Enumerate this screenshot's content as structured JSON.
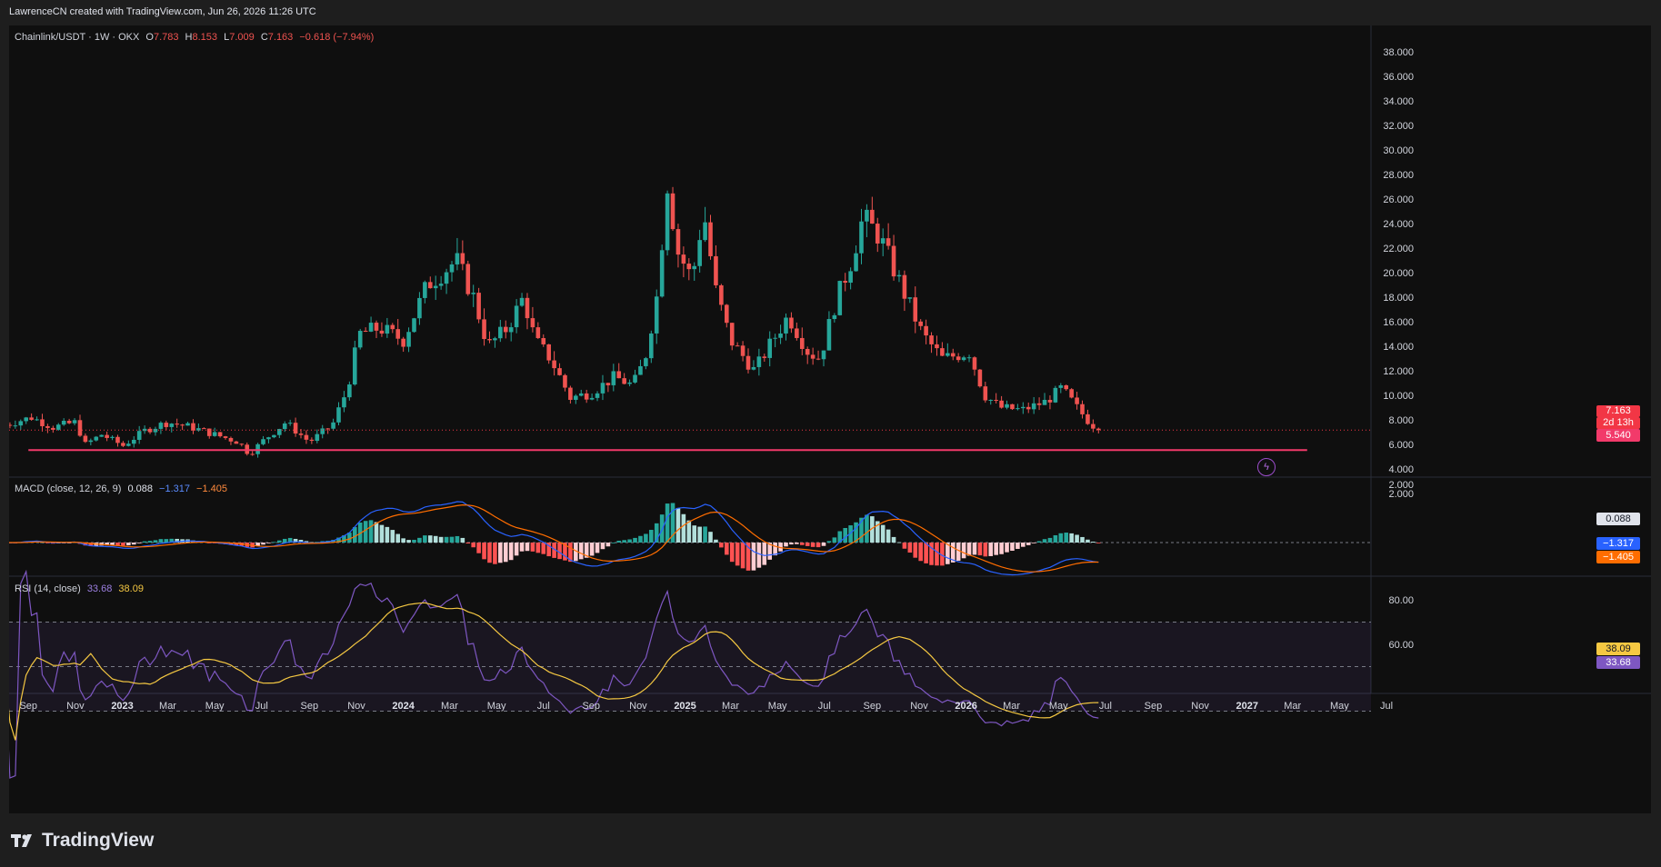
{
  "header": {
    "credit": "LawrenceCN created with TradingView.com, Jun 26, 2026 11:26 UTC"
  },
  "symbol": {
    "name": "Chainlink/USDT · 1W · OKX",
    "open_label": "O",
    "open": "7.783",
    "high_label": "H",
    "high": "8.153",
    "low_label": "L",
    "low": "7.009",
    "close_label": "C",
    "close": "7.163",
    "change": "−0.618 (−7.94%)"
  },
  "macd_legend": {
    "name": "MACD (close, 12, 26, 9)",
    "hist": "0.088",
    "macd": "−1.317",
    "signal": "−1.405"
  },
  "rsi_legend": {
    "name": "RSI (14, close)",
    "rsi": "33.68",
    "ma": "38.09"
  },
  "price_labels": {
    "last": "7.163",
    "countdown": "2d 13h",
    "support": "5.540"
  },
  "macd_labels": {
    "hist": "0.088",
    "macd": "−1.317",
    "signal": "−1.405"
  },
  "rsi_labels": {
    "ma": "38.09",
    "rsi": "33.68"
  },
  "brand": {
    "name": "TradingView",
    "icon": "tradingview-logo-icon"
  },
  "colors": {
    "up": "#26a69a",
    "down": "#ef5350",
    "support": "#f23a6a",
    "macd": "#2962ff",
    "signal": "#ff6d00",
    "rsi": "#7e57c2",
    "rsi_ma": "#f5c842"
  },
  "chart_data": [
    {
      "type": "candlestick",
      "title": "Chainlink/USDT · 1W · OKX",
      "y_ticks": [
        "38.000",
        "36.000",
        "34.000",
        "32.000",
        "30.000",
        "28.000",
        "26.000",
        "24.000",
        "22.000",
        "20.000",
        "18.000",
        "16.000",
        "14.000",
        "12.000",
        "10.000",
        "8.000",
        "6.000",
        "4.000",
        "2.000"
      ],
      "ylim": [
        2,
        38
      ],
      "x_ticks": [
        "Sep",
        "Nov",
        "2023",
        "Mar",
        "May",
        "Jul",
        "Sep",
        "Nov",
        "2024",
        "Mar",
        "May",
        "Jul",
        "Sep",
        "Nov",
        "2025",
        "Mar",
        "May",
        "Jul",
        "Sep",
        "Nov",
        "2026",
        "Mar",
        "May",
        "Jul",
        "Sep",
        "Nov",
        "2027",
        "Mar",
        "May",
        "Jul"
      ],
      "x_range": [
        "2022-08",
        "2027-07"
      ],
      "last_close": 7.163,
      "support_level": 5.54,
      "weekly_close_trajectory": [
        {
          "date": "2022-08-01",
          "close": 7.6
        },
        {
          "date": "2022-09-05",
          "close": 8.2
        },
        {
          "date": "2022-10-03",
          "close": 7.4
        },
        {
          "date": "2022-11-01",
          "close": 7.8
        },
        {
          "date": "2022-11-14",
          "close": 6.0
        },
        {
          "date": "2022-12-05",
          "close": 6.8
        },
        {
          "date": "2023-01-02",
          "close": 5.9
        },
        {
          "date": "2023-02-01",
          "close": 7.2
        },
        {
          "date": "2023-03-01",
          "close": 7.8
        },
        {
          "date": "2023-04-01",
          "close": 7.4
        },
        {
          "date": "2023-05-01",
          "close": 6.8
        },
        {
          "date": "2023-06-01",
          "close": 6.2
        },
        {
          "date": "2023-06-15",
          "close": 5.2
        },
        {
          "date": "2023-07-01",
          "close": 6.2
        },
        {
          "date": "2023-08-01",
          "close": 7.8
        },
        {
          "date": "2023-09-01",
          "close": 6.2
        },
        {
          "date": "2023-10-01",
          "close": 7.6
        },
        {
          "date": "2023-10-20",
          "close": 10.5
        },
        {
          "date": "2023-11-05",
          "close": 15.0
        },
        {
          "date": "2023-12-01",
          "close": 15.5
        },
        {
          "date": "2024-01-01",
          "close": 14.5
        },
        {
          "date": "2024-02-01",
          "close": 19.0
        },
        {
          "date": "2024-03-10",
          "close": 21.0
        },
        {
          "date": "2024-04-01",
          "close": 18.0
        },
        {
          "date": "2024-04-20",
          "close": 14.0
        },
        {
          "date": "2024-05-15",
          "close": 15.5
        },
        {
          "date": "2024-06-05",
          "close": 18.0
        },
        {
          "date": "2024-06-20",
          "close": 14.5
        },
        {
          "date": "2024-07-10",
          "close": 13.0
        },
        {
          "date": "2024-08-05",
          "close": 9.8
        },
        {
          "date": "2024-09-01",
          "close": 10.2
        },
        {
          "date": "2024-10-01",
          "close": 11.5
        },
        {
          "date": "2024-10-25",
          "close": 10.8
        },
        {
          "date": "2024-11-10",
          "close": 13.0
        },
        {
          "date": "2024-11-25",
          "close": 18.0
        },
        {
          "date": "2024-12-10",
          "close": 28.0
        },
        {
          "date": "2024-12-20",
          "close": 22.0
        },
        {
          "date": "2025-01-10",
          "close": 19.5
        },
        {
          "date": "2025-01-25",
          "close": 25.0
        },
        {
          "date": "2025-02-10",
          "close": 18.5
        },
        {
          "date": "2025-03-01",
          "close": 14.5
        },
        {
          "date": "2025-04-01",
          "close": 12.0
        },
        {
          "date": "2025-04-20",
          "close": 14.0
        },
        {
          "date": "2025-05-15",
          "close": 16.5
        },
        {
          "date": "2025-06-10",
          "close": 13.5
        },
        {
          "date": "2025-06-25",
          "close": 13.0
        },
        {
          "date": "2025-07-15",
          "close": 17.5
        },
        {
          "date": "2025-08-05",
          "close": 21.0
        },
        {
          "date": "2025-08-20",
          "close": 24.5
        },
        {
          "date": "2025-09-10",
          "close": 23.0
        },
        {
          "date": "2025-10-01",
          "close": 20.0
        },
        {
          "date": "2025-10-15",
          "close": 18.0
        },
        {
          "date": "2025-11-05",
          "close": 15.0
        },
        {
          "date": "2025-12-01",
          "close": 13.0
        },
        {
          "date": "2026-01-05",
          "close": 13.5
        },
        {
          "date": "2026-01-25",
          "close": 10.0
        },
        {
          "date": "2026-02-15",
          "close": 9.0
        },
        {
          "date": "2026-03-15",
          "close": 8.8
        },
        {
          "date": "2026-04-15",
          "close": 9.5
        },
        {
          "date": "2026-05-05",
          "close": 10.6
        },
        {
          "date": "2026-05-25",
          "close": 9.0
        },
        {
          "date": "2026-06-10",
          "close": 7.8
        },
        {
          "date": "2026-06-22",
          "close": 7.163
        }
      ]
    },
    {
      "type": "line",
      "title": "MACD (close, 12, 26, 9)",
      "y_ticks": [
        "2.000"
      ],
      "series": [
        {
          "name": "MACD",
          "last": -1.317
        },
        {
          "name": "Signal",
          "last": -1.405
        },
        {
          "name": "Histogram",
          "last": 0.088
        }
      ]
    },
    {
      "type": "line",
      "title": "RSI (14, close)",
      "y_ticks": [
        "80.00",
        "60.00"
      ],
      "ylim": [
        20,
        85
      ],
      "bands": [
        70,
        50,
        30
      ],
      "series": [
        {
          "name": "RSI",
          "last": 33.68
        },
        {
          "name": "RSI MA",
          "last": 38.09
        }
      ]
    }
  ]
}
